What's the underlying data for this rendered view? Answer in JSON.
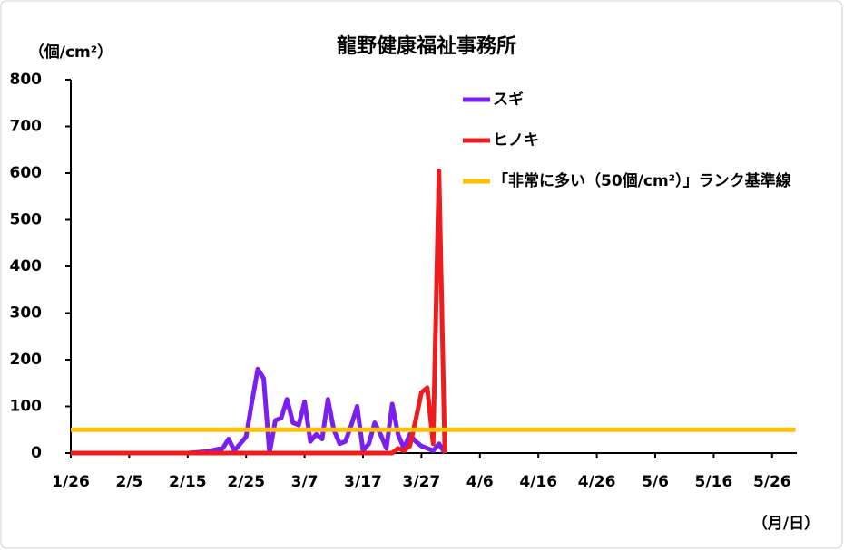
{
  "chart_data": {
    "type": "line",
    "title": "龍野健康福祉事務所",
    "y_axis_label": "（個/cm²）",
    "x_axis_label": "（月/日）",
    "categories": [
      "1/26",
      null,
      null,
      null,
      null,
      null,
      null,
      null,
      null,
      null,
      "2/5",
      null,
      null,
      null,
      null,
      null,
      null,
      null,
      null,
      null,
      "2/15",
      null,
      null,
      null,
      null,
      null,
      null,
      null,
      null,
      null,
      "2/25",
      null,
      null,
      null,
      null,
      null,
      null,
      null,
      null,
      null,
      "3/7",
      null,
      null,
      null,
      null,
      null,
      null,
      null,
      null,
      null,
      "3/17",
      null,
      null,
      null,
      null,
      null,
      null,
      null,
      null,
      null,
      "3/27",
      null,
      null,
      null,
      null,
      null,
      null,
      null,
      null,
      null,
      "4/6",
      null,
      null,
      null,
      null,
      null,
      null,
      null,
      null,
      null,
      "4/16",
      null,
      null,
      null,
      null,
      null,
      null,
      null,
      null,
      null,
      "4/26",
      null,
      null,
      null,
      null,
      null,
      null,
      null,
      null,
      null,
      "5/6",
      null,
      null,
      null,
      null,
      null,
      null,
      null,
      null,
      null,
      "5/16",
      null,
      null,
      null,
      null,
      null,
      null,
      null,
      null,
      null,
      "5/26",
      null,
      null,
      null,
      null
    ],
    "series": [
      {
        "name": "スギ",
        "color": "#7a1ff0",
        "values": [
          0,
          0,
          0,
          0,
          0,
          0,
          0,
          0,
          0,
          0,
          0,
          0,
          0,
          0,
          0,
          0,
          0,
          0,
          0,
          0,
          0,
          1,
          2,
          3,
          5,
          8,
          10,
          30,
          5,
          20,
          35,
          110,
          180,
          160,
          0,
          70,
          75,
          115,
          65,
          60,
          110,
          25,
          40,
          30,
          115,
          50,
          20,
          25,
          60,
          100,
          5,
          20,
          65,
          40,
          10,
          105,
          40,
          10,
          40,
          25,
          15,
          10,
          5,
          20,
          0,
          null,
          null,
          null,
          null,
          null,
          null,
          null,
          null,
          null,
          null,
          null,
          null,
          null,
          null,
          null,
          null,
          null,
          null,
          null,
          null,
          null,
          null,
          null,
          null,
          null,
          null,
          null,
          null,
          null,
          null,
          null,
          null,
          null,
          null,
          null,
          null,
          null,
          null,
          null,
          null,
          null,
          null,
          null,
          null,
          null,
          null,
          null,
          null,
          null,
          null,
          null,
          null,
          null,
          null,
          null,
          null,
          null,
          null,
          null,
          null
        ]
      },
      {
        "name": "ヒノキ",
        "color": "#ee1c1c",
        "values": [
          0,
          0,
          0,
          0,
          0,
          0,
          0,
          0,
          0,
          0,
          0,
          0,
          0,
          0,
          0,
          0,
          0,
          0,
          0,
          0,
          0,
          0,
          0,
          0,
          0,
          0,
          0,
          0,
          0,
          0,
          0,
          0,
          0,
          0,
          0,
          0,
          0,
          0,
          0,
          0,
          0,
          0,
          0,
          0,
          0,
          0,
          0,
          0,
          0,
          0,
          0,
          0,
          0,
          0,
          0,
          0,
          10,
          5,
          15,
          70,
          130,
          140,
          20,
          605,
          0,
          null,
          null,
          null,
          null,
          null,
          null,
          null,
          null,
          null,
          null,
          null,
          null,
          null,
          null,
          null,
          null,
          null,
          null,
          null,
          null,
          null,
          null,
          null,
          null,
          null,
          null,
          null,
          null,
          null,
          null,
          null,
          null,
          null,
          null,
          null,
          null,
          null,
          null,
          null,
          null,
          null,
          null,
          null,
          null,
          null,
          null,
          null,
          null,
          null,
          null,
          null,
          null,
          null,
          null,
          null,
          null,
          null,
          null,
          null,
          null
        ]
      },
      {
        "name": "「非常に多い（50個/cm²）」ランク基準線",
        "color": "#ffc000",
        "values": [
          50,
          50,
          50,
          50,
          50,
          50,
          50,
          50,
          50,
          50,
          50,
          50,
          50,
          50,
          50,
          50,
          50,
          50,
          50,
          50,
          50,
          50,
          50,
          50,
          50,
          50,
          50,
          50,
          50,
          50,
          50,
          50,
          50,
          50,
          50,
          50,
          50,
          50,
          50,
          50,
          50,
          50,
          50,
          50,
          50,
          50,
          50,
          50,
          50,
          50,
          50,
          50,
          50,
          50,
          50,
          50,
          50,
          50,
          50,
          50,
          50,
          50,
          50,
          50,
          50,
          50,
          50,
          50,
          50,
          50,
          50,
          50,
          50,
          50,
          50,
          50,
          50,
          50,
          50,
          50,
          50,
          50,
          50,
          50,
          50,
          50,
          50,
          50,
          50,
          50,
          50,
          50,
          50,
          50,
          50,
          50,
          50,
          50,
          50,
          50,
          50,
          50,
          50,
          50,
          50,
          50,
          50,
          50,
          50,
          50,
          50,
          50,
          50,
          50,
          50,
          50,
          50,
          50,
          50,
          50,
          50,
          50,
          50,
          50,
          50
        ]
      }
    ],
    "ylim": [
      0,
      800
    ],
    "yticks": [
      0,
      100,
      200,
      300,
      400,
      500,
      600,
      700,
      800
    ],
    "legend": "upper right"
  }
}
